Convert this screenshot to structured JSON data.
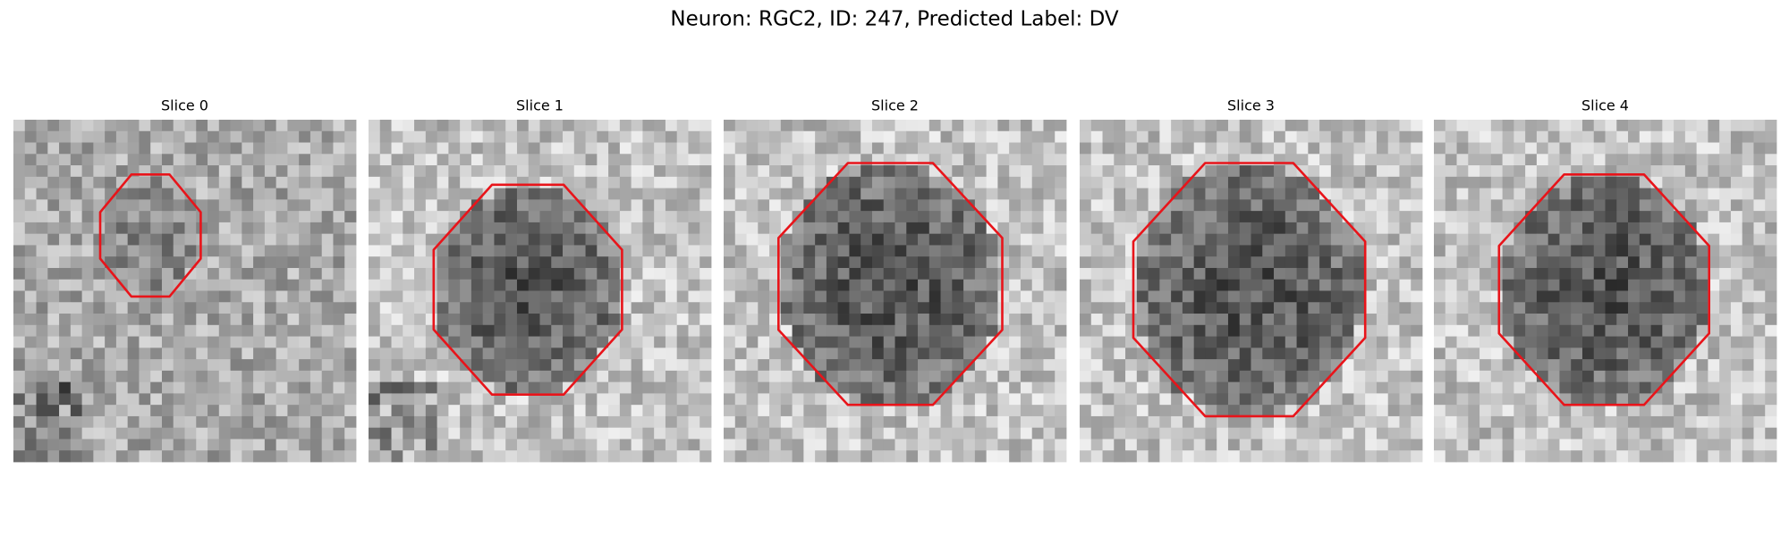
{
  "title": "Neuron: RGC2, ID: 247, Predicted Label: DV",
  "panels": [
    {
      "title": "Slice 0"
    },
    {
      "title": "Slice 1"
    },
    {
      "title": "Slice 2"
    },
    {
      "title": "Slice 3"
    },
    {
      "title": "Slice 4"
    }
  ]
}
